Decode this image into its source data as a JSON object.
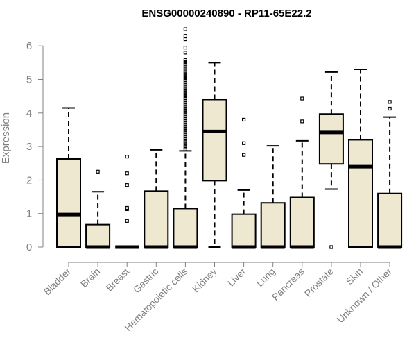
{
  "chart_data": {
    "type": "boxplot",
    "title": "ENSG00000240890 - RP11-65E22.2",
    "ylabel": "Expression",
    "xlabel": "",
    "ylim": [
      0,
      6.6
    ],
    "yticks": [
      0,
      1,
      2,
      3,
      4,
      5,
      6
    ],
    "grid": false,
    "box_color": "#efe8d0",
    "categories": [
      "Bladder",
      "Brain",
      "Breast",
      "Gastric",
      "Hematopoietic cells",
      "Kidney",
      "Liver",
      "Lung",
      "Pancreas",
      "Prostate",
      "Skin",
      "Unknown / Other"
    ],
    "boxes": [
      {
        "q1": 0,
        "median": 0.97,
        "q3": 2.63,
        "whisker_low": 0,
        "whisker_high": 4.15,
        "outliers": []
      },
      {
        "q1": 0,
        "median": 0,
        "q3": 0.67,
        "whisker_low": 0,
        "whisker_high": 1.65,
        "outliers": [
          2.25
        ]
      },
      {
        "q1": 0,
        "median": 0,
        "q3": 0,
        "whisker_low": 0,
        "whisker_high": 0,
        "outliers": [
          0.78,
          1.13,
          1.17,
          1.85,
          2.2,
          2.7
        ]
      },
      {
        "q1": 0,
        "median": 0,
        "q3": 1.67,
        "whisker_low": 0,
        "whisker_high": 2.9,
        "outliers": []
      },
      {
        "q1": 0,
        "median": 0,
        "q3": 1.15,
        "whisker_low": 0,
        "whisker_high": 2.87,
        "outliers": [
          2.92,
          2.97,
          3.02,
          3.08,
          3.13,
          3.18,
          3.24,
          3.3,
          3.36,
          3.42,
          3.48,
          3.54,
          3.6,
          3.66,
          3.72,
          3.78,
          3.84,
          3.9,
          3.96,
          4.02,
          4.08,
          4.14,
          4.2,
          4.26,
          4.32,
          4.38,
          4.44,
          4.5,
          4.56,
          4.62,
          4.68,
          4.74,
          4.8,
          4.86,
          4.92,
          4.98,
          5.04,
          5.1,
          5.16,
          5.22,
          5.28,
          5.34,
          5.4,
          5.46,
          5.52,
          5.58,
          5.8,
          5.95,
          6.2,
          6.3,
          6.5
        ]
      },
      {
        "q1": 1.98,
        "median": 3.45,
        "q3": 4.4,
        "whisker_low": 0,
        "whisker_high": 5.5,
        "outliers": []
      },
      {
        "q1": 0,
        "median": 0,
        "q3": 0.98,
        "whisker_low": 0,
        "whisker_high": 1.7,
        "outliers": [
          2.75,
          3.1,
          3.8
        ]
      },
      {
        "q1": 0,
        "median": 0,
        "q3": 1.32,
        "whisker_low": 0,
        "whisker_high": 3.02,
        "outliers": []
      },
      {
        "q1": 0,
        "median": 0,
        "q3": 1.48,
        "whisker_low": 0,
        "whisker_high": 3.17,
        "outliers": [
          3.75,
          4.43
        ]
      },
      {
        "q1": 2.48,
        "median": 3.42,
        "q3": 3.97,
        "whisker_low": 1.73,
        "whisker_high": 5.22,
        "outliers": [
          0
        ]
      },
      {
        "q1": 0,
        "median": 2.4,
        "q3": 3.2,
        "whisker_low": 0,
        "whisker_high": 5.3,
        "outliers": []
      },
      {
        "q1": 0,
        "median": 0,
        "q3": 1.6,
        "whisker_low": 0,
        "whisker_high": 3.88,
        "outliers": [
          4.13,
          4.33
        ]
      }
    ]
  }
}
